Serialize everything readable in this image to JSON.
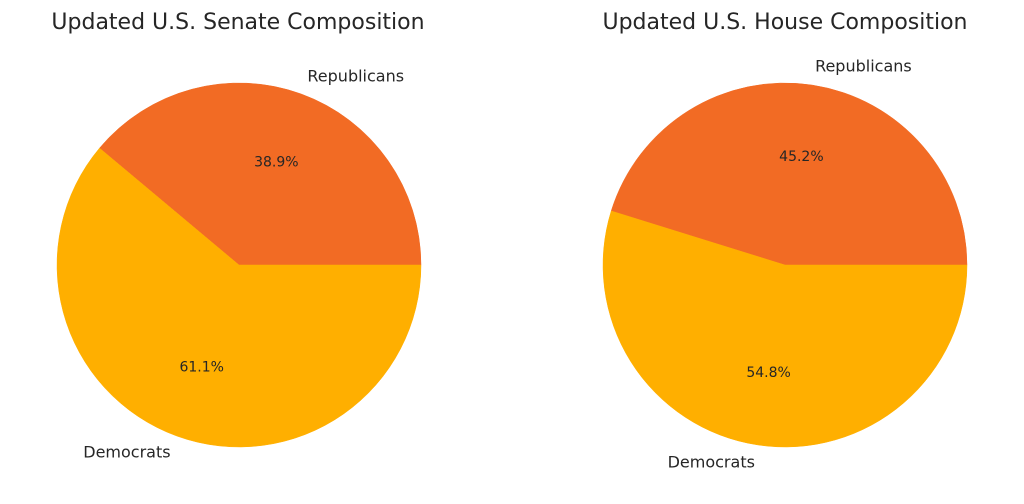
{
  "chart_data": [
    {
      "type": "pie",
      "title": "Updated U.S. Senate Composition",
      "categories": [
        "Republicans",
        "Democrats"
      ],
      "values": [
        38.9,
        61.1
      ],
      "value_labels": [
        "38.9%",
        "61.1%"
      ],
      "colors": [
        "#F26B24",
        "#FFAF00"
      ]
    },
    {
      "type": "pie",
      "title": "Updated U.S. House Composition",
      "categories": [
        "Republicans",
        "Democrats"
      ],
      "values": [
        45.2,
        54.8
      ],
      "value_labels": [
        "45.2%",
        "54.8%"
      ],
      "colors": [
        "#F26B24",
        "#FFAF00"
      ]
    }
  ]
}
